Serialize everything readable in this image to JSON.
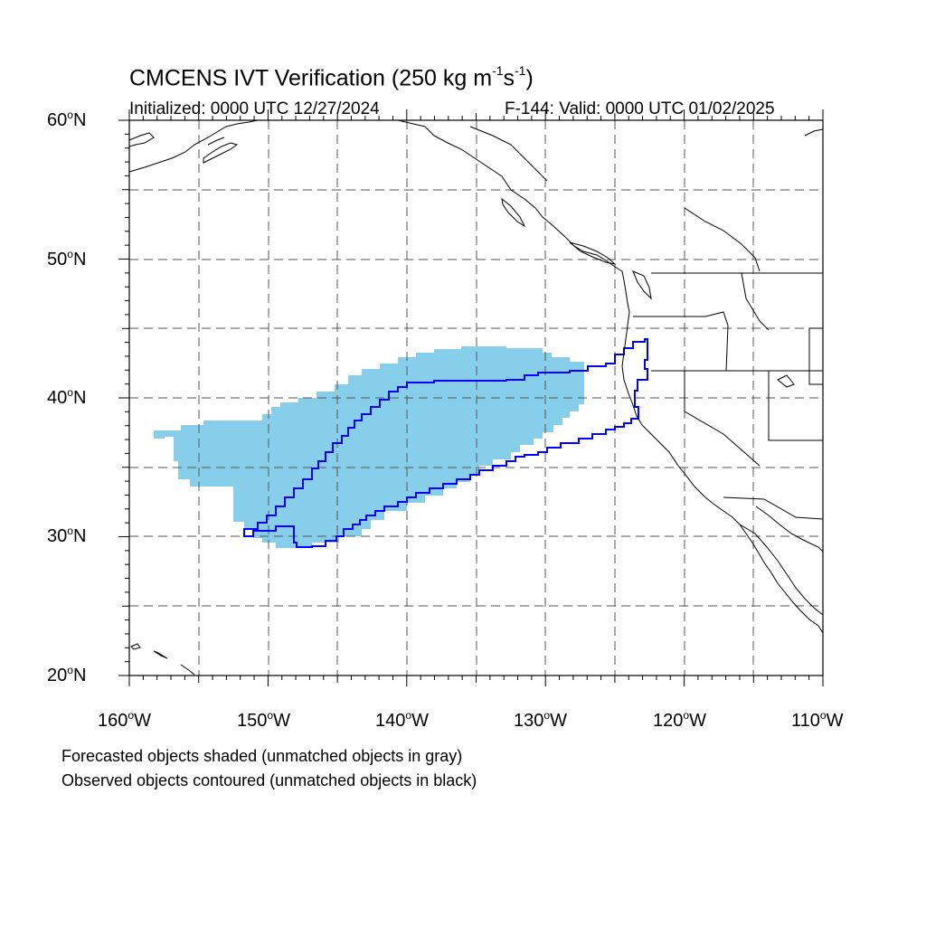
{
  "header": {
    "title_prefix": "CMCENS IVT Verification (250 kg m",
    "title_exp1": "-1",
    "title_mid": "s",
    "title_exp2": "-1",
    "title_suffix": ")",
    "initialized": "Initialized: 0000 UTC 12/27/2024",
    "valid": "F-144: Valid: 0000 UTC 01/02/2025"
  },
  "map": {
    "extent": {
      "lon": [
        -160,
        -110
      ],
      "lat": [
        20,
        60
      ]
    },
    "projection": "equirectangular",
    "grid": "dashed every 5 degrees",
    "lat_labels": [
      {
        "num": "60",
        "deg": "o",
        "hemi": "N"
      },
      {
        "num": "50",
        "deg": "o",
        "hemi": "N"
      },
      {
        "num": "40",
        "deg": "o",
        "hemi": "N"
      },
      {
        "num": "30",
        "deg": "o",
        "hemi": "N"
      },
      {
        "num": "20",
        "deg": "o",
        "hemi": "N"
      }
    ],
    "lon_labels": [
      {
        "num": "160",
        "deg": "o",
        "hemi": "W"
      },
      {
        "num": "150",
        "deg": "o",
        "hemi": "W"
      },
      {
        "num": "140",
        "deg": "o",
        "hemi": "W"
      },
      {
        "num": "130",
        "deg": "o",
        "hemi": "W"
      },
      {
        "num": "120",
        "deg": "o",
        "hemi": "W"
      },
      {
        "num": "110",
        "deg": "o",
        "hemi": "W"
      }
    ],
    "forecast_object_color": "#87ceea",
    "observed_object_color": "#0000ff",
    "coastline_color": "#000000"
  },
  "captions": {
    "line1": "Forecasted objects shaded (unmatched objects in gray)",
    "line2": "Observed objects contoured (unmatched objects in black)"
  }
}
